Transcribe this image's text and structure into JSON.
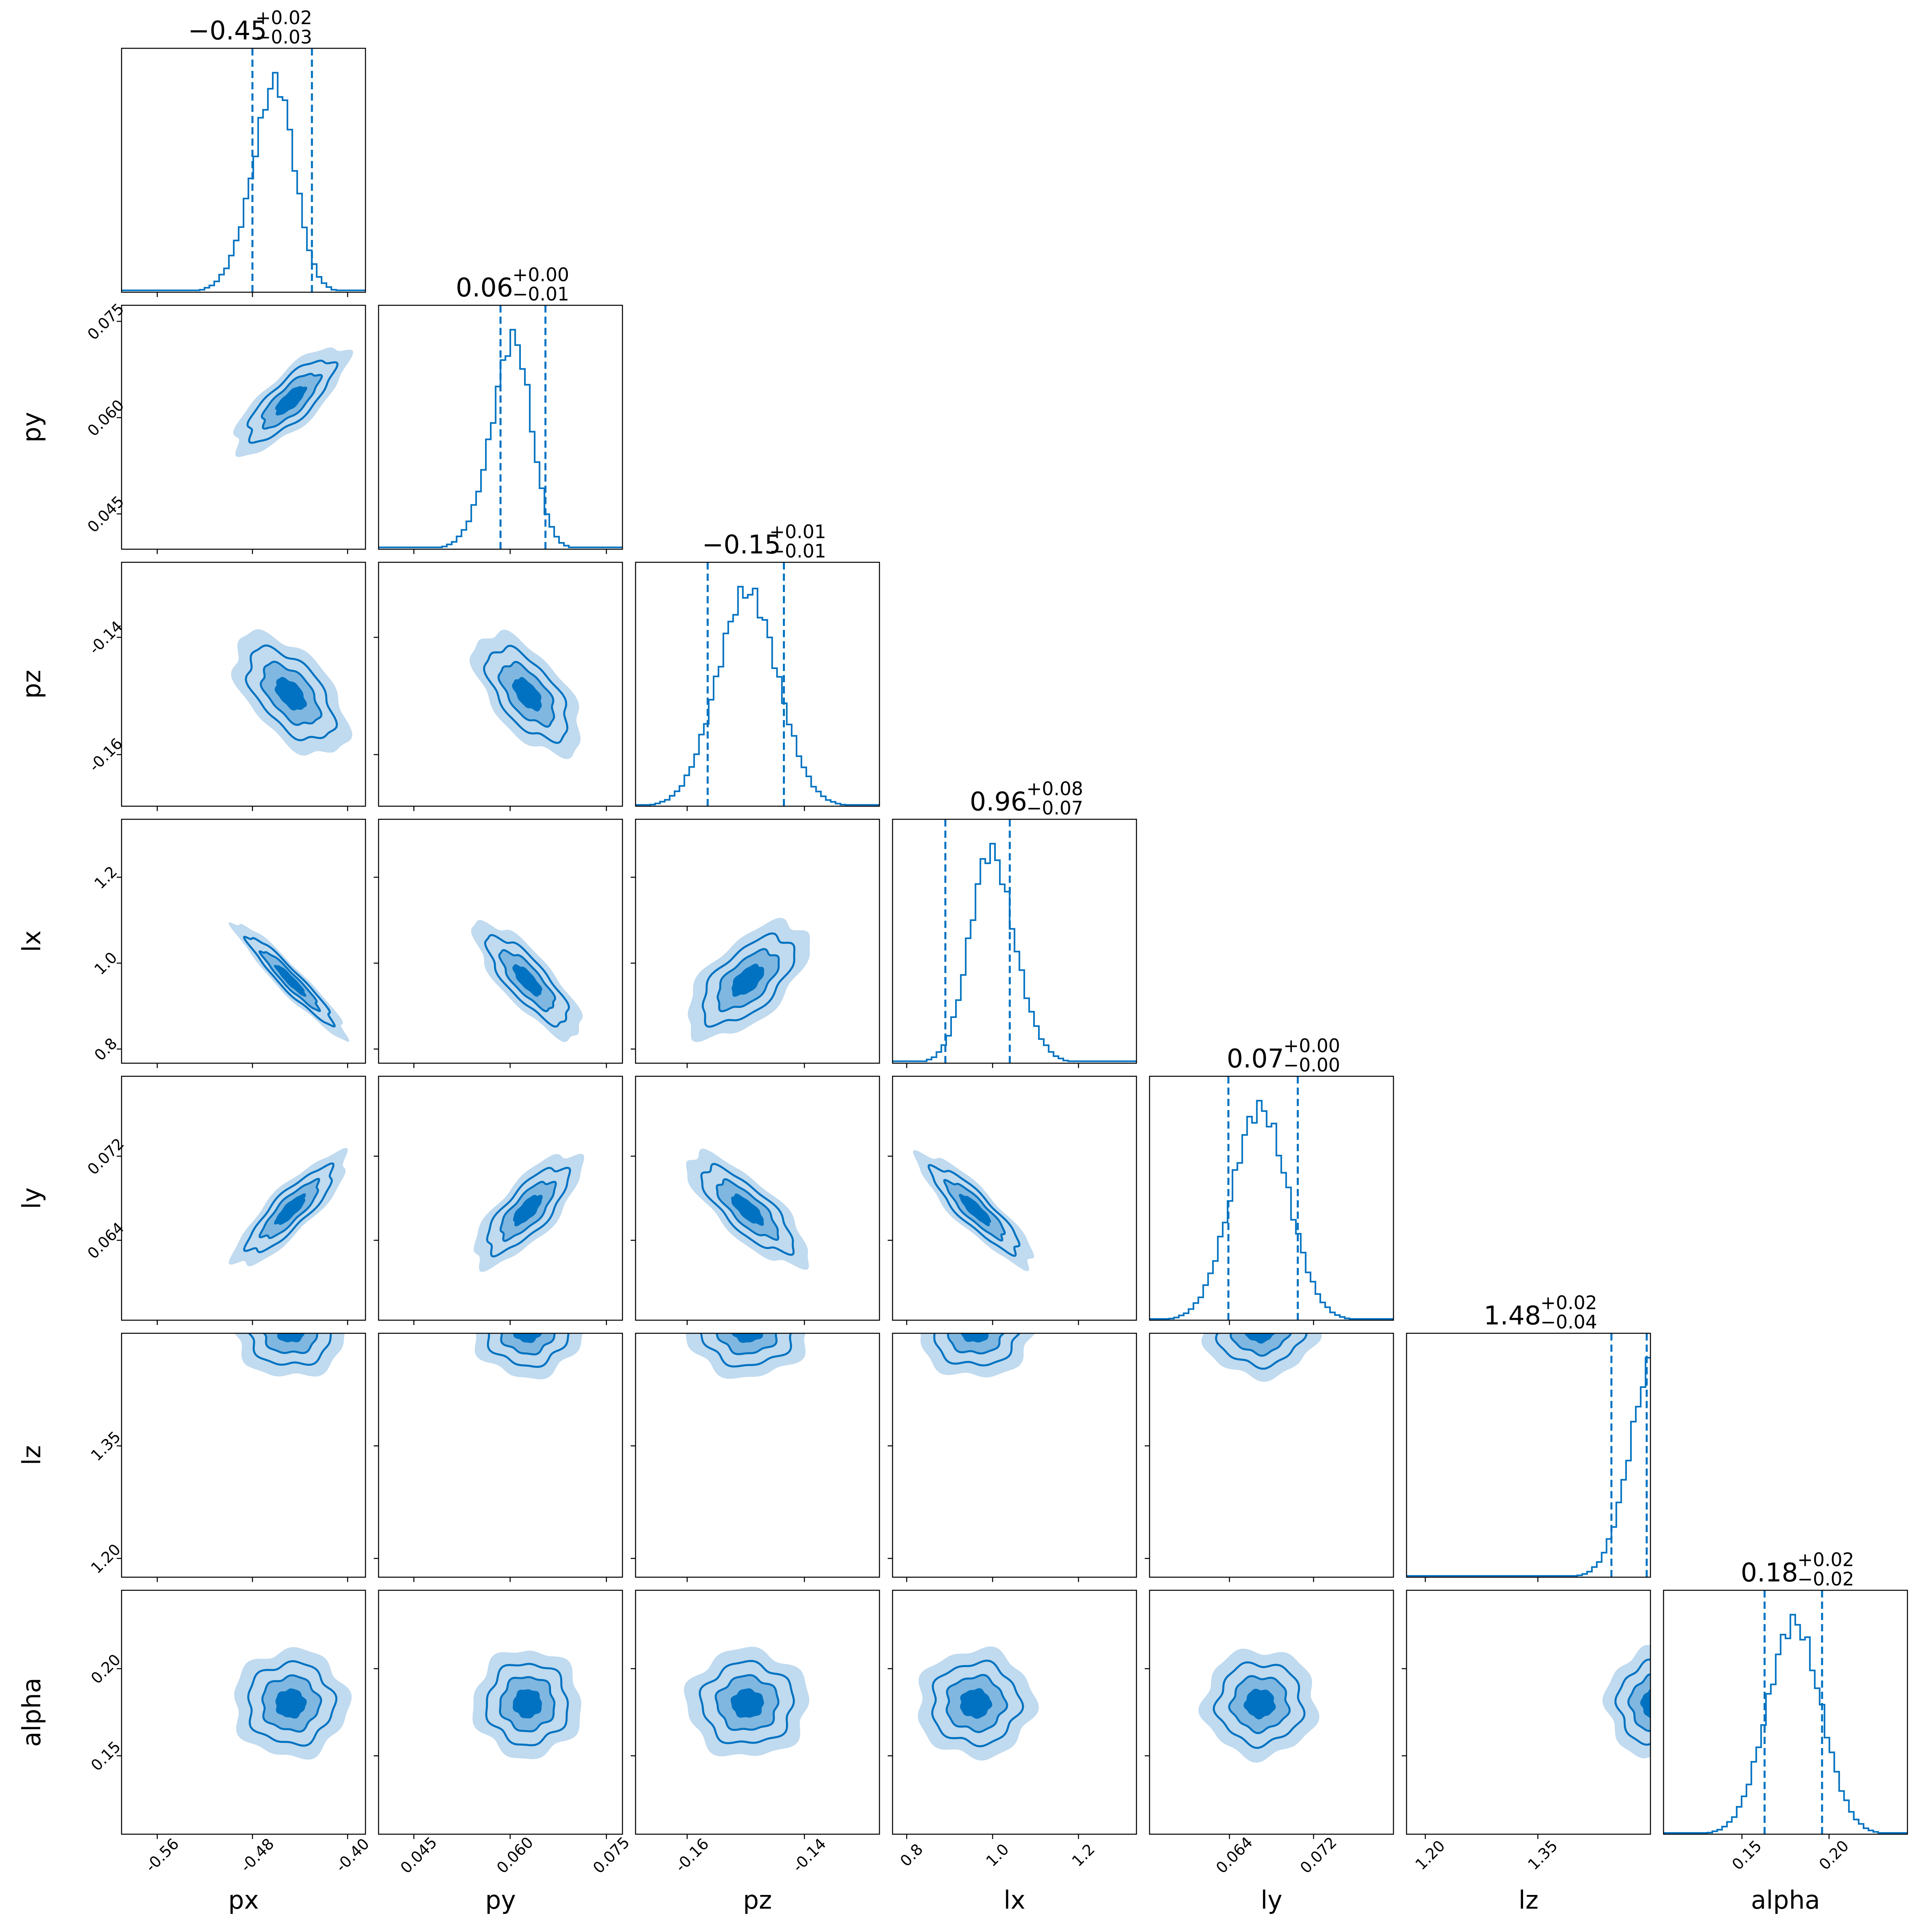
{
  "chart_data": {
    "type": "corner",
    "accent_color": "#0072C1",
    "fill_colors": [
      "#C0DAEF",
      "#80B7E0",
      "#0072C1"
    ],
    "parameters": [
      "px",
      "py",
      "pz",
      "lx",
      "ly",
      "lz",
      "alpha"
    ],
    "axis_labels": [
      "px",
      "py",
      "pz",
      "lx",
      "ly",
      "lz",
      "alpha"
    ],
    "ranges": [
      [
        -0.59,
        -0.385
      ],
      [
        0.0395,
        0.0775
      ],
      [
        -0.1688,
        -0.1272
      ],
      [
        0.767,
        1.335
      ],
      [
        0.0564,
        0.0796
      ],
      [
        1.175,
        1.5
      ],
      [
        0.105,
        0.245
      ]
    ],
    "ticks": [
      [
        "-0.56",
        "-0.48",
        "-0.40"
      ],
      [
        "0.045",
        "0.060",
        "0.075"
      ],
      [
        "-0.16",
        "-0.14"
      ],
      [
        "0.8",
        "1.0",
        "1.2"
      ],
      [
        "0.064",
        "0.072"
      ],
      [
        "1.20",
        "1.35"
      ],
      [
        "0.15",
        "0.20"
      ]
    ],
    "titles": [
      {
        "value": "−0.45",
        "plus": "+0.02",
        "minus": "−0.03"
      },
      {
        "value": "0.06",
        "plus": "+0.00",
        "minus": "−0.01"
      },
      {
        "value": "−0.15",
        "plus": "+0.01",
        "minus": "−0.01"
      },
      {
        "value": "0.96",
        "plus": "+0.08",
        "minus": "−0.07"
      },
      {
        "value": "0.07",
        "plus": "+0.00",
        "minus": "−0.00"
      },
      {
        "value": "1.48",
        "plus": "+0.02",
        "minus": "−0.04"
      },
      {
        "value": "0.18",
        "plus": "+0.02",
        "minus": "−0.02"
      }
    ],
    "quantiles": [
      [
        -0.48,
        -0.43
      ],
      [
        0.0585,
        0.0655
      ],
      [
        -0.1565,
        -0.1435
      ],
      [
        0.89,
        1.04
      ],
      [
        0.0639,
        0.0705
      ],
      [
        1.448,
        1.495
      ],
      [
        0.163,
        0.196
      ]
    ],
    "distributions": [
      {
        "mean": -0.448,
        "sd": 0.024,
        "skew": -1.4
      },
      {
        "mean": 0.0627,
        "sd": 0.0042,
        "skew": -1.4
      },
      {
        "mean": -0.1497,
        "sd": 0.0052,
        "skew": 0
      },
      {
        "mean": 0.96,
        "sd": 0.068,
        "skew": 1.2
      },
      {
        "mean": 0.0669,
        "sd": 0.0027,
        "skew": 0
      },
      {
        "mean": 1.505,
        "sd": 0.032,
        "skew": 0
      },
      {
        "mean": 0.18,
        "sd": 0.0155,
        "skew": 0
      }
    ],
    "correlations": [
      [
        1,
        0.78,
        -0.55,
        -0.95,
        0.85,
        0,
        0
      ],
      [
        0.78,
        1,
        -0.6,
        -0.8,
        0.75,
        0,
        0
      ],
      [
        -0.55,
        -0.6,
        1,
        0.6,
        -0.78,
        0,
        0
      ],
      [
        -0.95,
        -0.8,
        0.6,
        1,
        -0.88,
        0,
        0
      ],
      [
        0.85,
        0.75,
        -0.78,
        -0.88,
        1,
        0,
        0
      ],
      [
        0,
        0,
        0,
        0,
        0,
        1,
        0
      ],
      [
        0,
        0,
        0,
        0,
        0,
        0,
        1
      ]
    ],
    "contour_levels_sigma": [
      0.5,
      1.0,
      1.5,
      2.0
    ],
    "grid": false,
    "legend": "none"
  }
}
